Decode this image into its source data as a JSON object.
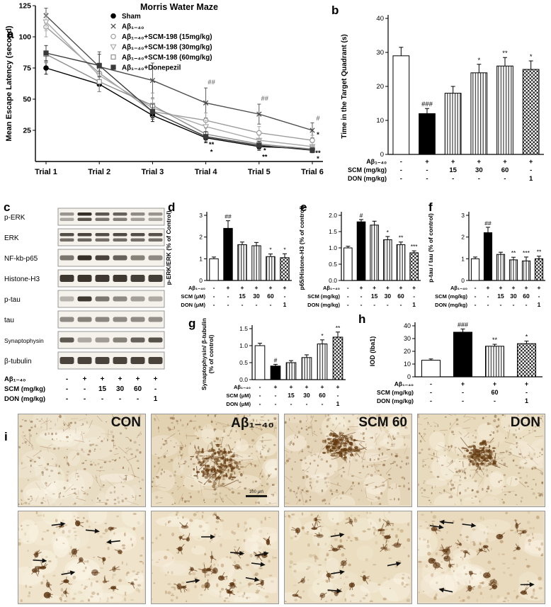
{
  "panels": {
    "a": "a",
    "b": "b",
    "c": "c",
    "d": "d",
    "e": "e",
    "f": "f",
    "g": "g",
    "h": "h",
    "i": "i"
  },
  "chart_data": [
    {
      "panel": "a",
      "type": "line",
      "title": "Morris Water Maze",
      "ylabel": "Mean Escape Latency (second)",
      "ylim": [
        0,
        125
      ],
      "yticks": [
        25,
        50,
        75,
        100,
        125
      ],
      "categories": [
        "Trial 1",
        "Trial 2",
        "Trial 3",
        "Trial 4",
        "Trial 5",
        "Trial 6"
      ],
      "legend_position": "top-right",
      "grid": false,
      "series": [
        {
          "name": "Sham",
          "marker": "circle",
          "filled": true,
          "color": "#000000",
          "values": [
            75,
            62,
            37,
            19,
            12,
            10
          ],
          "errors": [
            5,
            6,
            5,
            4,
            3,
            2
          ]
        },
        {
          "name": "Aβ₁₋₄₀",
          "marker": "x",
          "filled": true,
          "color": "#4d4d4d",
          "values": [
            117,
            76,
            65,
            47,
            38,
            25
          ],
          "errors": [
            6,
            12,
            14,
            12,
            8,
            6
          ]
        },
        {
          "name": "Aβ₁₋₄₀+SCM-198 (15mg/kg)",
          "marker": "circle",
          "filled": false,
          "color": "#9c9c9c",
          "values": [
            108,
            71,
            40,
            33,
            23,
            17
          ],
          "errors": [
            8,
            8,
            6,
            6,
            5,
            4
          ]
        },
        {
          "name": "Aβ₁₋₄₀+SCM-198 (30mg/kg)",
          "marker": "triangle-down",
          "filled": false,
          "color": "#ababab",
          "values": [
            112,
            69,
            43,
            28,
            17,
            12
          ],
          "errors": [
            7,
            9,
            7,
            5,
            4,
            3
          ]
        },
        {
          "name": "Aβ₁₋₄₀+SCM-198 (60mg/kg)",
          "marker": "square",
          "filled": false,
          "color": "#8f8f8f",
          "values": [
            86,
            64,
            45,
            22,
            14,
            10
          ],
          "errors": [
            7,
            8,
            10,
            5,
            4,
            3
          ]
        },
        {
          "name": "Aβ₁₋₄₀+Donepezil",
          "marker": "square",
          "filled": true,
          "color": "#3a3a3a",
          "values": [
            87,
            77,
            40,
            20,
            13,
            9
          ],
          "errors": [
            6,
            9,
            6,
            4,
            3,
            2
          ]
        }
      ],
      "annotations": [
        {
          "text": "##",
          "trial": 3,
          "y": 62
        },
        {
          "text": "##",
          "trial": 4,
          "y": 49
        },
        {
          "text": "#",
          "trial": 5,
          "y": 33
        },
        {
          "text": "**",
          "trial": 3,
          "y": 12
        },
        {
          "text": "*",
          "trial": 3,
          "y": 6
        },
        {
          "text": "*",
          "trial": 4,
          "y": 7
        },
        {
          "text": "**",
          "trial": 4,
          "y": 2
        },
        {
          "text": "*",
          "trial": 5,
          "y": 20
        },
        {
          "text": "**",
          "trial": 5,
          "y": 5
        },
        {
          "text": "*",
          "trial": 5,
          "y": 0.5
        }
      ]
    },
    {
      "panel": "b",
      "type": "bar",
      "ylabel": "Time in the Target Quadrant (s)",
      "ylim": [
        0,
        40
      ],
      "yticks": [
        0,
        10,
        20,
        30,
        40
      ],
      "ytick_labels": [
        "0",
        "10",
        "20",
        "30",
        "40"
      ],
      "values": [
        29,
        12,
        18,
        24,
        26,
        25
      ],
      "errors": [
        2.5,
        1.5,
        2,
        2.5,
        2.5,
        2.5
      ],
      "annotations": [
        "",
        "###",
        "",
        "*",
        "**",
        "*"
      ],
      "styles": [
        "open",
        "solid",
        "stripe",
        "stripe",
        "stripe",
        "check"
      ],
      "rows": [
        {
          "label": "Aβ₁₋₄₀",
          "values": [
            "-",
            "+",
            "+",
            "+",
            "+",
            "+"
          ]
        },
        {
          "label": "SCM (mg/kg)",
          "values": [
            "-",
            "-",
            "15",
            "30",
            "60",
            "-"
          ]
        },
        {
          "label": "DON (mg/kg)",
          "values": [
            "-",
            "-",
            "-",
            "-",
            "-",
            "1"
          ]
        }
      ]
    },
    {
      "panel": "d",
      "type": "bar",
      "ylabel": "p-ERK/ERK (% of Control)",
      "ylim": [
        0,
        3
      ],
      "yticks": [
        0,
        1,
        2,
        3
      ],
      "ytick_labels": [
        "0",
        "1",
        "2",
        "3"
      ],
      "values": [
        1.0,
        2.4,
        1.65,
        1.6,
        1.1,
        1.05
      ],
      "errors": [
        0.08,
        0.35,
        0.12,
        0.15,
        0.12,
        0.18
      ],
      "annotations": [
        "",
        "##",
        "",
        "",
        "*",
        "*"
      ],
      "styles": [
        "open",
        "solid",
        "stripe",
        "stripe",
        "stripe",
        "check"
      ],
      "rows": [
        {
          "label": "Aβ₁₋₄₀",
          "values": [
            "-",
            "+",
            "+",
            "+",
            "+",
            "+"
          ]
        },
        {
          "label": "SCM (μM)",
          "values": [
            "-",
            "-",
            "15",
            "30",
            "60",
            "-"
          ]
        },
        {
          "label": "DON (μM)",
          "values": [
            "-",
            "-",
            "-",
            "-",
            "-",
            "1"
          ]
        }
      ]
    },
    {
      "panel": "e",
      "type": "bar",
      "ylabel": "p65/Histone-H3 (% of control)",
      "ylim": [
        0,
        2
      ],
      "yticks": [
        0,
        0.5,
        1,
        1.5,
        2
      ],
      "ytick_labels": [
        "0.0",
        "0.5",
        "1.0",
        "1.5",
        "2.0"
      ],
      "values": [
        1.0,
        1.8,
        1.7,
        1.25,
        1.1,
        0.85
      ],
      "errors": [
        0.05,
        0.07,
        0.12,
        0.1,
        0.08,
        0.06
      ],
      "annotations": [
        "",
        "#",
        "",
        "*",
        "**",
        "***"
      ],
      "styles": [
        "open",
        "solid",
        "stripe",
        "stripe",
        "stripe",
        "check"
      ],
      "rows": [
        {
          "label": "Aβ₁₋₄₀",
          "values": [
            "-",
            "+",
            "+",
            "+",
            "+",
            "+"
          ]
        },
        {
          "label": "SCM (mg/kg)",
          "values": [
            "-",
            "-",
            "15",
            "30",
            "60",
            "-"
          ]
        },
        {
          "label": "DON (mg/kg)",
          "values": [
            "-",
            "-",
            "-",
            "-",
            "-",
            "1"
          ]
        }
      ]
    },
    {
      "panel": "f",
      "type": "bar",
      "ylabel": "p-tau / tau (% of control)",
      "ylim": [
        0,
        3
      ],
      "yticks": [
        0,
        1,
        2,
        3
      ],
      "ytick_labels": [
        "0",
        "1",
        "2",
        "3"
      ],
      "values": [
        1.0,
        2.2,
        1.2,
        0.95,
        0.9,
        1.0
      ],
      "errors": [
        0.08,
        0.25,
        0.1,
        0.12,
        0.18,
        0.12
      ],
      "annotations": [
        "",
        "##",
        "",
        "**",
        "***",
        "**"
      ],
      "styles": [
        "open",
        "solid",
        "stripe",
        "stripe",
        "stripe",
        "check"
      ],
      "rows": [
        {
          "label": "Aβ₁₋₄₀",
          "values": [
            "-",
            "+",
            "+",
            "+",
            "+",
            "+"
          ]
        },
        {
          "label": "SCM (mg/kg)",
          "values": [
            "-",
            "-",
            "15",
            "30",
            "60",
            "-"
          ]
        },
        {
          "label": "DON (mg/kg)",
          "values": [
            "-",
            "-",
            "-",
            "-",
            "-",
            "1"
          ]
        }
      ]
    },
    {
      "panel": "g",
      "type": "bar",
      "ylabel": "Synaptophysin/ β-tubulin\n(% of control)",
      "ylim": [
        0,
        1.5
      ],
      "yticks": [
        0,
        0.5,
        1,
        1.5
      ],
      "ytick_labels": [
        "0.0",
        "0.5",
        "1.0",
        "1.5"
      ],
      "values": [
        1.0,
        0.4,
        0.5,
        0.65,
        1.05,
        1.25
      ],
      "errors": [
        0.07,
        0.05,
        0.06,
        0.08,
        0.12,
        0.15
      ],
      "annotations": [
        "",
        "#",
        "",
        "",
        "*",
        "**"
      ],
      "styles": [
        "open",
        "solid",
        "stripe",
        "stripe",
        "stripe",
        "check"
      ],
      "rows": [
        {
          "label": "Aβ₁₋₄₀",
          "values": [
            "-",
            "+",
            "+",
            "+",
            "+",
            "+"
          ]
        },
        {
          "label": "SCM (μM)",
          "values": [
            "-",
            "-",
            "15",
            "30",
            "60",
            "-"
          ]
        },
        {
          "label": "DON (μM)",
          "values": [
            "-",
            "-",
            "-",
            "-",
            "-",
            "1"
          ]
        }
      ]
    },
    {
      "panel": "h",
      "type": "bar",
      "ylabel": "IOD (Iba1)",
      "ylim": [
        0,
        40
      ],
      "yticks": [
        0,
        10,
        20,
        30,
        40
      ],
      "ytick_labels": [
        "0",
        "10",
        "20",
        "30",
        "40"
      ],
      "values": [
        13,
        35,
        24,
        26
      ],
      "errors": [
        1,
        2.5,
        1.5,
        2
      ],
      "annotations": [
        "",
        "###",
        "**",
        "*"
      ],
      "styles": [
        "open",
        "solid",
        "stripe",
        "check"
      ],
      "rows": [
        {
          "label": "Aβ₁₋₄₀",
          "values": [
            "-",
            "+",
            "+",
            "+"
          ]
        },
        {
          "label": "SCM (mg/kg)",
          "values": [
            "-",
            "-",
            "60",
            "-"
          ]
        },
        {
          "label": "DON (mg/kg)",
          "values": [
            "-",
            "-",
            "-",
            "1"
          ]
        }
      ]
    }
  ],
  "blots": {
    "rows": [
      {
        "label": "p-ERK",
        "lanes": [
          0.45,
          0.95,
          0.75,
          0.7,
          0.5,
          0.45
        ],
        "double": true
      },
      {
        "label": "ERK",
        "lanes": [
          0.8,
          0.85,
          0.8,
          0.82,
          0.8,
          0.78
        ],
        "double": true
      },
      {
        "label": "NF-kb-p65",
        "lanes": [
          0.6,
          0.95,
          0.85,
          0.7,
          0.55,
          0.5
        ],
        "double": false
      },
      {
        "label": "Histone-H3",
        "lanes": [
          0.9,
          0.92,
          0.9,
          0.9,
          0.88,
          0.88
        ],
        "double": false,
        "thick": true
      },
      {
        "label": "p-tau",
        "lanes": [
          0.3,
          0.9,
          0.6,
          0.5,
          0.4,
          0.35
        ],
        "double": false
      },
      {
        "label": "tau",
        "lanes": [
          0.5,
          0.55,
          0.52,
          0.5,
          0.5,
          0.48
        ],
        "double": false
      },
      {
        "label": "Synaptophysin",
        "lanes": [
          0.75,
          0.35,
          0.42,
          0.55,
          0.7,
          0.78
        ],
        "double": false
      },
      {
        "label": "β-tubulin",
        "lanes": [
          0.85,
          0.85,
          0.85,
          0.85,
          0.85,
          0.85
        ],
        "double": false,
        "thick": true
      }
    ],
    "rows_dose": [
      {
        "label": "Aβ₁₋₄₀",
        "values": [
          "-",
          "+",
          "+",
          "+",
          "+",
          "+"
        ]
      },
      {
        "label": "SCM (mg/kg)",
        "values": [
          "-",
          "-",
          "15",
          "30",
          "60",
          "-"
        ]
      },
      {
        "label": "DON (mg/kg)",
        "values": [
          "-",
          "-",
          "-",
          "-",
          "-",
          "1"
        ]
      }
    ]
  },
  "ihc": {
    "columns": [
      "CON",
      "Aβ₁₋₄₀",
      "SCM 60",
      "DON"
    ],
    "scale_label": "100 μm"
  }
}
